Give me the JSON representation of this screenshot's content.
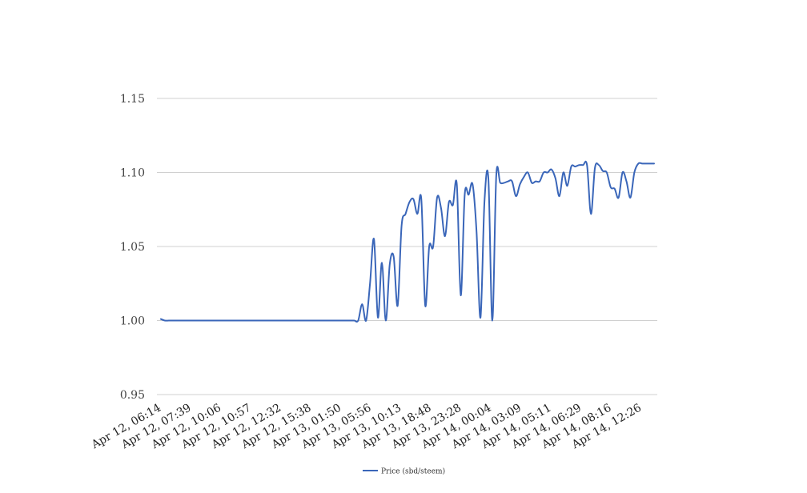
{
  "chart_data": {
    "type": "line",
    "title": "",
    "xlabel": "",
    "ylabel": "",
    "ylim": [
      0.95,
      1.15
    ],
    "y_ticks": [
      "0.95",
      "1.00",
      "1.05",
      "1.10",
      "1.15"
    ],
    "grid": true,
    "legend_position": "bottom",
    "x_tick_labels": [
      "Apr 12, 06:14",
      "Apr 12, 07:39",
      "Apr 12, 10:06",
      "Apr 12, 10:57",
      "Apr 12, 12:32",
      "Apr 12, 15:38",
      "Apr 13, 01:50",
      "Apr 13, 05:56",
      "Apr 13, 10:13",
      "Apr 13, 18:48",
      "Apr 13, 23:28",
      "Apr 14, 00:04",
      "Apr 14, 03:09",
      "Apr 14, 05:11",
      "Apr 14, 06:29",
      "Apr 14, 08:16",
      "Apr 14, 12:26"
    ],
    "series": [
      {
        "name": "Price (sbd/steem)",
        "color": "#3a66b9",
        "values": [
          1.001,
          1.0,
          1.0,
          1.0,
          1.0,
          1.0,
          1.0,
          1.0,
          1.0,
          1.0,
          1.0,
          1.0,
          1.0,
          1.0,
          1.0,
          1.0,
          1.0,
          1.0,
          1.0,
          1.0,
          1.0,
          1.0,
          1.0,
          1.0,
          1.0,
          1.0,
          1.0,
          1.0,
          1.0,
          1.0,
          1.0,
          1.0,
          1.0,
          1.0,
          1.0,
          1.0,
          1.0,
          1.0,
          1.0,
          1.0,
          1.0,
          1.0,
          1.0,
          1.0,
          1.0,
          1.0,
          1.0,
          1.0,
          1.0,
          1.0,
          1.0,
          1.011,
          1.0,
          1.025,
          1.055,
          1.002,
          1.039,
          1.0,
          1.038,
          1.043,
          1.01,
          1.064,
          1.072,
          1.08,
          1.082,
          1.072,
          1.082,
          1.01,
          1.05,
          1.05,
          1.083,
          1.076,
          1.057,
          1.08,
          1.078,
          1.092,
          1.017,
          1.085,
          1.085,
          1.092,
          1.06,
          1.002,
          1.08,
          1.096,
          1.0,
          1.098,
          1.093,
          1.093,
          1.094,
          1.094,
          1.084,
          1.092,
          1.097,
          1.1,
          1.093,
          1.094,
          1.094,
          1.1,
          1.1,
          1.102,
          1.096,
          1.084,
          1.1,
          1.091,
          1.104,
          1.104,
          1.105,
          1.105,
          1.105,
          1.072,
          1.103,
          1.105,
          1.101,
          1.1,
          1.09,
          1.089,
          1.083,
          1.1,
          1.094,
          1.083,
          1.1,
          1.106,
          1.106,
          1.106,
          1.106,
          1.106
        ]
      }
    ]
  }
}
